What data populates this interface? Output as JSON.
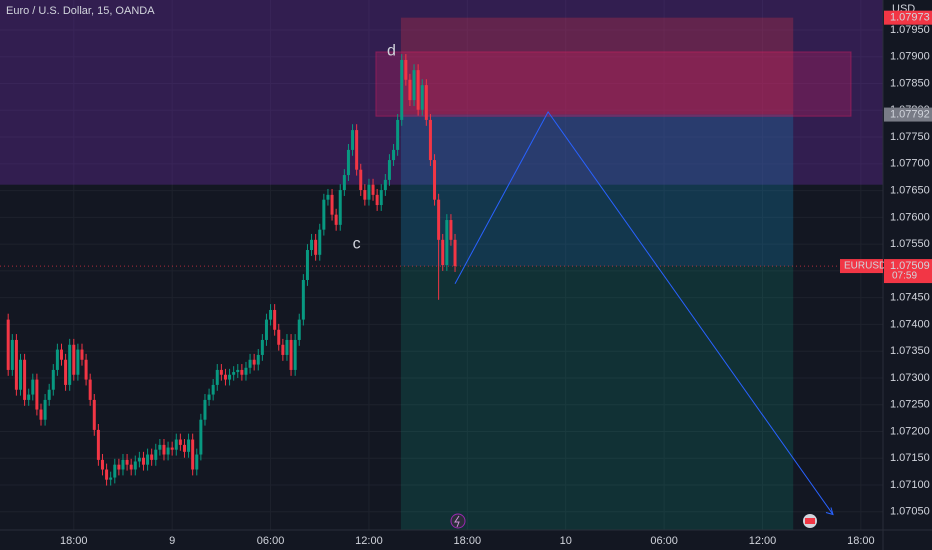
{
  "chart_data": {
    "type": "candlestick",
    "title": "Euro / U.S. Dollar, 15, OANDA",
    "currency": "USD",
    "up_color": "#089981",
    "down_color": "#f23645",
    "xlim": [
      -2,
      213.4
    ],
    "ylim": [
      1.07016,
      1.08006
    ],
    "xticks": [
      {
        "value": 16,
        "label": "18:00"
      },
      {
        "value": 40,
        "label": "9"
      },
      {
        "value": 64,
        "label": "06:00"
      },
      {
        "value": 88,
        "label": "12:00"
      },
      {
        "value": 112,
        "label": "18:00"
      },
      {
        "value": 136,
        "label": "10"
      },
      {
        "value": 160,
        "label": "06:00"
      },
      {
        "value": 184,
        "label": "12:00"
      },
      {
        "value": 208,
        "label": "18:00"
      }
    ],
    "yticks": [
      {
        "value": 1.0705,
        "label": "1.07050"
      },
      {
        "value": 1.071,
        "label": "1.07100"
      },
      {
        "value": 1.0715,
        "label": "1.07150"
      },
      {
        "value": 1.072,
        "label": "1.07200"
      },
      {
        "value": 1.0725,
        "label": "1.07250"
      },
      {
        "value": 1.073,
        "label": "1.07300"
      },
      {
        "value": 1.0735,
        "label": "1.07350"
      },
      {
        "value": 1.074,
        "label": "1.07400"
      },
      {
        "value": 1.0745,
        "label": "1.07450"
      },
      {
        "value": 1.075,
        "label": "1.07500"
      },
      {
        "value": 1.0755,
        "label": "1.07550"
      },
      {
        "value": 1.076,
        "label": "1.07600"
      },
      {
        "value": 1.0765,
        "label": "1.07650"
      },
      {
        "value": 1.077,
        "label": "1.07700"
      },
      {
        "value": 1.0775,
        "label": "1.07750"
      },
      {
        "value": 1.078,
        "label": "1.07800"
      },
      {
        "value": 1.0785,
        "label": "1.07850"
      },
      {
        "value": 1.079,
        "label": "1.07900"
      },
      {
        "value": 1.0795,
        "label": "1.07950"
      }
    ],
    "ohlc": [
      [
        1.07409,
        1.0742,
        1.07304,
        1.07315
      ],
      [
        1.07315,
        1.07382,
        1.07304,
        1.07371
      ],
      [
        1.07371,
        1.07382,
        1.07267,
        1.07278
      ],
      [
        1.07278,
        1.07345,
        1.07267,
        1.07334
      ],
      [
        1.07334,
        1.07345,
        1.07248,
        1.07259
      ],
      [
        1.07259,
        1.0728,
        1.07248,
        1.07269
      ],
      [
        1.07269,
        1.07308,
        1.07258,
        1.07297
      ],
      [
        1.07297,
        1.07308,
        1.0723,
        1.07241
      ],
      [
        1.07241,
        1.07252,
        1.07211,
        1.07222
      ],
      [
        1.07222,
        1.0727,
        1.07211,
        1.07259
      ],
      [
        1.07259,
        1.07289,
        1.07248,
        1.07278
      ],
      [
        1.07278,
        1.07326,
        1.07267,
        1.07315
      ],
      [
        1.07315,
        1.07364,
        1.07304,
        1.07353
      ],
      [
        1.07353,
        1.07364,
        1.07323,
        1.07334
      ],
      [
        1.07334,
        1.07345,
        1.07276,
        1.07287
      ],
      [
        1.07287,
        1.07373,
        1.07276,
        1.07362
      ],
      [
        1.07362,
        1.07373,
        1.07295,
        1.07306
      ],
      [
        1.07306,
        1.07364,
        1.07295,
        1.07353
      ],
      [
        1.07353,
        1.07364,
        1.07323,
        1.07334
      ],
      [
        1.07334,
        1.07345,
        1.07286,
        1.07297
      ],
      [
        1.07297,
        1.07308,
        1.07248,
        1.07259
      ],
      [
        1.07259,
        1.0727,
        1.07192,
        1.07203
      ],
      [
        1.07203,
        1.07214,
        1.07136,
        1.07147
      ],
      [
        1.07147,
        1.07158,
        1.07118,
        1.07129
      ],
      [
        1.07129,
        1.0714,
        1.07099,
        1.0711
      ],
      [
        1.0711,
        1.07125,
        1.07099,
        1.07114
      ],
      [
        1.07114,
        1.07149,
        1.07103,
        1.07138
      ],
      [
        1.07138,
        1.07149,
        1.07118,
        1.07129
      ],
      [
        1.07129,
        1.07158,
        1.07118,
        1.07147
      ],
      [
        1.07147,
        1.07158,
        1.07127,
        1.07138
      ],
      [
        1.07138,
        1.07149,
        1.07118,
        1.07129
      ],
      [
        1.07129,
        1.07155,
        1.07118,
        1.07144
      ],
      [
        1.07144,
        1.07162,
        1.07133,
        1.07151
      ],
      [
        1.07151,
        1.07162,
        1.07127,
        1.07138
      ],
      [
        1.07138,
        1.07168,
        1.07127,
        1.07157
      ],
      [
        1.07157,
        1.07168,
        1.07136,
        1.07147
      ],
      [
        1.07147,
        1.07177,
        1.07136,
        1.07166
      ],
      [
        1.07166,
        1.07186,
        1.07155,
        1.07175
      ],
      [
        1.07175,
        1.07186,
        1.07146,
        1.07157
      ],
      [
        1.07157,
        1.07181,
        1.07146,
        1.0717
      ],
      [
        1.0717,
        1.07181,
        1.07155,
        1.07166
      ],
      [
        1.07166,
        1.07196,
        1.07155,
        1.07185
      ],
      [
        1.07185,
        1.07196,
        1.07164,
        1.07175
      ],
      [
        1.07175,
        1.07186,
        1.07151,
        1.07162
      ],
      [
        1.07162,
        1.07196,
        1.07151,
        1.07185
      ],
      [
        1.07185,
        1.07196,
        1.07118,
        1.07129
      ],
      [
        1.07129,
        1.07168,
        1.07118,
        1.07157
      ],
      [
        1.07157,
        1.07233,
        1.07146,
        1.07222
      ],
      [
        1.07222,
        1.0727,
        1.07211,
        1.07259
      ],
      [
        1.07259,
        1.0728,
        1.07248,
        1.07269
      ],
      [
        1.07269,
        1.07298,
        1.07258,
        1.07287
      ],
      [
        1.07287,
        1.07326,
        1.07276,
        1.07315
      ],
      [
        1.07315,
        1.07326,
        1.07295,
        1.07306
      ],
      [
        1.07306,
        1.07317,
        1.07286,
        1.07297
      ],
      [
        1.07297,
        1.07317,
        1.07286,
        1.07306
      ],
      [
        1.07306,
        1.07322,
        1.07295,
        1.07311
      ],
      [
        1.07311,
        1.07326,
        1.073,
        1.07315
      ],
      [
        1.07315,
        1.07326,
        1.07295,
        1.07306
      ],
      [
        1.07306,
        1.0733,
        1.07295,
        1.07319
      ],
      [
        1.07319,
        1.07345,
        1.07308,
        1.07334
      ],
      [
        1.07334,
        1.07345,
        1.07314,
        1.07325
      ],
      [
        1.07325,
        1.07354,
        1.07314,
        1.07343
      ],
      [
        1.07343,
        1.07382,
        1.07332,
        1.07371
      ],
      [
        1.07371,
        1.0742,
        1.0736,
        1.07409
      ],
      [
        1.07409,
        1.07438,
        1.07398,
        1.07427
      ],
      [
        1.07427,
        1.07438,
        1.07379,
        1.0739
      ],
      [
        1.0739,
        1.07401,
        1.07351,
        1.07362
      ],
      [
        1.07362,
        1.07373,
        1.07332,
        1.07343
      ],
      [
        1.07343,
        1.07382,
        1.07332,
        1.07371
      ],
      [
        1.07371,
        1.07382,
        1.07304,
        1.07315
      ],
      [
        1.07315,
        1.07382,
        1.07304,
        1.07371
      ],
      [
        1.07371,
        1.0742,
        1.0736,
        1.07409
      ],
      [
        1.07409,
        1.07494,
        1.07398,
        1.07483
      ],
      [
        1.07483,
        1.0755,
        1.07472,
        1.07539
      ],
      [
        1.07539,
        1.07569,
        1.07528,
        1.07558
      ],
      [
        1.07558,
        1.07569,
        1.07519,
        1.0753
      ],
      [
        1.0753,
        1.07588,
        1.07519,
        1.07577
      ],
      [
        1.07577,
        1.07644,
        1.07566,
        1.07633
      ],
      [
        1.07633,
        1.07653,
        1.07622,
        1.07642
      ],
      [
        1.07642,
        1.07653,
        1.07594,
        1.07605
      ],
      [
        1.07605,
        1.07616,
        1.07575,
        1.07586
      ],
      [
        1.07586,
        1.07662,
        1.07575,
        1.07651
      ],
      [
        1.07651,
        1.0769,
        1.0764,
        1.07679
      ],
      [
        1.07679,
        1.07737,
        1.07668,
        1.07726
      ],
      [
        1.07726,
        1.07774,
        1.07715,
        1.07763
      ],
      [
        1.07763,
        1.07774,
        1.07678,
        1.07689
      ],
      [
        1.07689,
        1.077,
        1.0764,
        1.07651
      ],
      [
        1.07651,
        1.07662,
        1.07622,
        1.07633
      ],
      [
        1.07633,
        1.07672,
        1.07622,
        1.07661
      ],
      [
        1.07661,
        1.07672,
        1.07631,
        1.07642
      ],
      [
        1.07642,
        1.07653,
        1.07612,
        1.07623
      ],
      [
        1.07623,
        1.07662,
        1.07612,
        1.07651
      ],
      [
        1.07651,
        1.07681,
        1.0764,
        1.0767
      ],
      [
        1.0767,
        1.07718,
        1.07659,
        1.07707
      ],
      [
        1.07707,
        1.07737,
        1.07696,
        1.07726
      ],
      [
        1.07726,
        1.07793,
        1.07715,
        1.07782
      ],
      [
        1.07782,
        1.07905,
        1.07771,
        1.07894
      ],
      [
        1.07894,
        1.07905,
        1.07846,
        1.07857
      ],
      [
        1.07857,
        1.07868,
        1.07808,
        1.07819
      ],
      [
        1.07819,
        1.07886,
        1.07808,
        1.07875
      ],
      [
        1.07875,
        1.07886,
        1.0779,
        1.07801
      ],
      [
        1.07801,
        1.07858,
        1.0779,
        1.07847
      ],
      [
        1.07847,
        1.07858,
        1.07771,
        1.07782
      ],
      [
        1.07782,
        1.07793,
        1.07696,
        1.07707
      ],
      [
        1.07707,
        1.07718,
        1.07622,
        1.07633
      ],
      [
        1.07633,
        1.07644,
        1.07446,
        1.07558
      ],
      [
        1.07558,
        1.07569,
        1.075,
        1.07511
      ],
      [
        1.07511,
        1.07606,
        1.075,
        1.07595
      ],
      [
        1.07595,
        1.07606,
        1.07547,
        1.07558
      ],
      [
        1.07558,
        1.07569,
        1.07498,
        1.07509
      ]
    ],
    "zone": {
      "low": 1.07661,
      "color": "#7b2fbe"
    },
    "box": {
      "x": [
        89.7,
        205.6
      ],
      "y": [
        1.07789,
        1.07909
      ],
      "color": "#e91e63"
    },
    "position": {
      "x": [
        95.8,
        191.5
      ],
      "entry": 1.07792,
      "stop": 1.07973
    },
    "path": {
      "x": [
        109,
        131.7,
        201.2
      ],
      "y": [
        1.07476,
        1.07797,
        1.07045
      ],
      "color": "#2962ff"
    },
    "annotations": [
      {
        "text": "d",
        "x": 93.5,
        "y": 1.0791
      },
      {
        "text": "c",
        "x": 85,
        "y": 1.0755
      }
    ],
    "price_tags": [
      {
        "value": 1.07973,
        "color": "#f23645"
      },
      {
        "value": 1.07792,
        "color": "#787b86"
      },
      {
        "name": "EURUSD",
        "value": 1.07509,
        "countdown": "07:59",
        "color": "#f23645"
      }
    ]
  }
}
